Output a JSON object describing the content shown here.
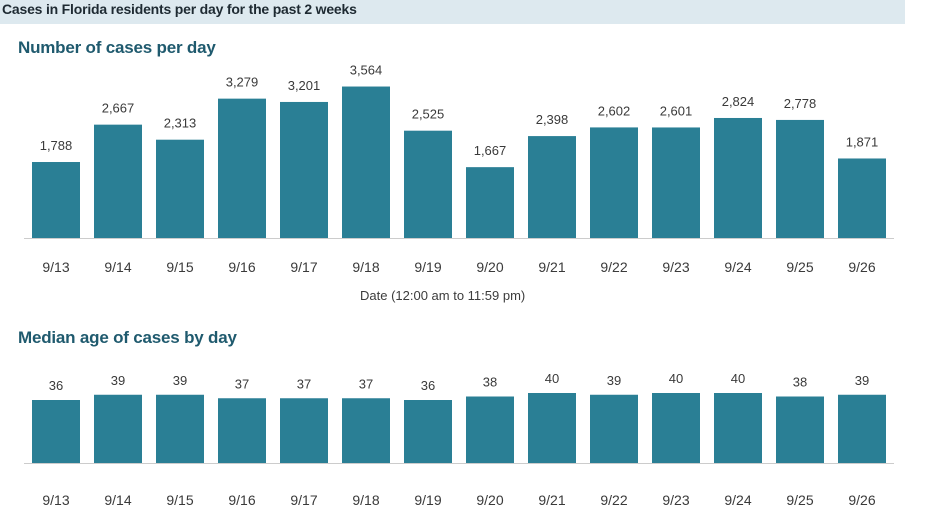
{
  "header": {
    "title": "Cases in Florida residents per day for the past 2 weeks"
  },
  "colors": {
    "bar": "#2a7f95",
    "header_bg": "#dde9ef",
    "section_title": "#1f5a6e",
    "axis": "#cccccc",
    "label": "#3a3a3a"
  },
  "chart_data": [
    {
      "type": "bar",
      "title": "Number of cases per day",
      "xlabel": "Date (12:00 am to 11:59 pm)",
      "ylabel": "",
      "categories": [
        "9/13",
        "9/14",
        "9/15",
        "9/16",
        "9/17",
        "9/18",
        "9/19",
        "9/20",
        "9/21",
        "9/22",
        "9/23",
        "9/24",
        "9/25",
        "9/26"
      ],
      "values": [
        1788,
        2667,
        2313,
        3279,
        3201,
        3564,
        2525,
        1667,
        2398,
        2602,
        2601,
        2824,
        2778,
        1871
      ],
      "value_labels": [
        "1,788",
        "2,667",
        "2,313",
        "3,279",
        "3,201",
        "3,564",
        "2,525",
        "1,667",
        "2,398",
        "2,602",
        "2,601",
        "2,824",
        "2,778",
        "1,871"
      ],
      "ylim": [
        0,
        3600
      ],
      "grid": false
    },
    {
      "type": "bar",
      "title": "Median age of cases by day",
      "xlabel": "",
      "ylabel": "",
      "categories": [
        "9/13",
        "9/14",
        "9/15",
        "9/16",
        "9/17",
        "9/18",
        "9/19",
        "9/20",
        "9/21",
        "9/22",
        "9/23",
        "9/24",
        "9/25",
        "9/26"
      ],
      "values": [
        36,
        39,
        39,
        37,
        37,
        37,
        36,
        38,
        40,
        39,
        40,
        40,
        38,
        39
      ],
      "value_labels": [
        "36",
        "39",
        "39",
        "37",
        "37",
        "37",
        "36",
        "38",
        "40",
        "39",
        "40",
        "40",
        "38",
        "39"
      ],
      "ylim": [
        0,
        40
      ],
      "grid": false
    }
  ]
}
